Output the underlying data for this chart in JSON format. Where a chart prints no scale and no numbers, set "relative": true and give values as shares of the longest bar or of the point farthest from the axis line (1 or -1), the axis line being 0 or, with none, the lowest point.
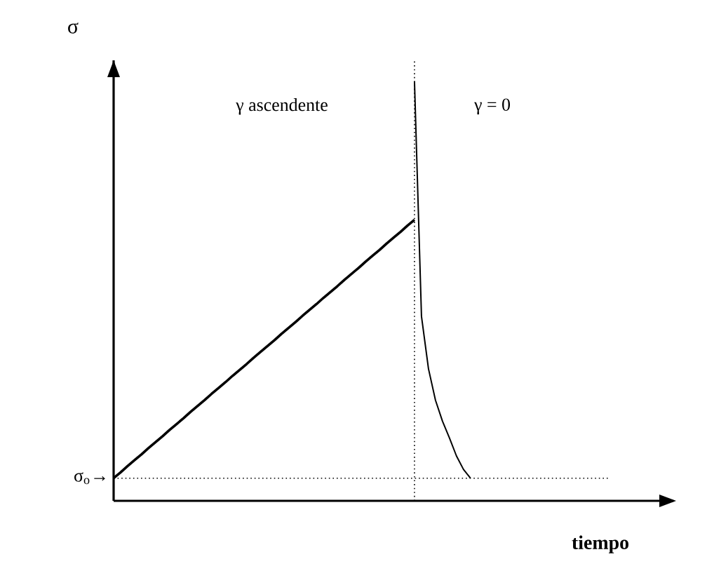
{
  "chart_data": {
    "type": "line",
    "relative": true,
    "xlabel": "tiempo",
    "ylabel": "σ",
    "categories": [
      null,
      null,
      null,
      null,
      null,
      null,
      null,
      null,
      null,
      null,
      null,
      null,
      null,
      null,
      null,
      null,
      null,
      null,
      null,
      null,
      null,
      null,
      null,
      null,
      null,
      null,
      null,
      null,
      null,
      null,
      null,
      null,
      null,
      null,
      null,
      null,
      null,
      null,
      null,
      null,
      null,
      null,
      null,
      null,
      null,
      null,
      null,
      null,
      null,
      null,
      null,
      null,
      null,
      null,
      null,
      null,
      null,
      null,
      null,
      null,
      null,
      null,
      null,
      null,
      null,
      null,
      null,
      null,
      null,
      null,
      null,
      null,
      null,
      null,
      null,
      null,
      null,
      null,
      null,
      null,
      null
    ],
    "series": [
      {
        "color": "#000000",
        "values": [
          0.054,
          0.068,
          0.083,
          0.097,
          0.111,
          0.126,
          0.14,
          0.154,
          0.169,
          0.183,
          0.197,
          0.212,
          0.226,
          0.24,
          0.255,
          0.269,
          0.283,
          0.298,
          0.312,
          0.326,
          0.341,
          0.355,
          0.369,
          0.383,
          0.398,
          0.412,
          0.426,
          0.441,
          0.455,
          0.469,
          0.484,
          0.498,
          0.512,
          0.527,
          0.541,
          0.555,
          0.57,
          0.584,
          0.598,
          0.613,
          0.627,
          0.641,
          0.656,
          0.67,
          null,
          null,
          null,
          null,
          null,
          null,
          null,
          null,
          null,
          null,
          null,
          null,
          null,
          null,
          null,
          null,
          null,
          null,
          null,
          null,
          null,
          null,
          null,
          null,
          null,
          null,
          null,
          null,
          null,
          null,
          null,
          null,
          null,
          null,
          null,
          null,
          null
        ]
      },
      {
        "color": "#000000",
        "values": [
          null,
          null,
          null,
          null,
          null,
          null,
          null,
          null,
          null,
          null,
          null,
          null,
          null,
          null,
          null,
          null,
          null,
          null,
          null,
          null,
          null,
          null,
          null,
          null,
          null,
          null,
          null,
          null,
          null,
          null,
          null,
          null,
          null,
          null,
          null,
          null,
          null,
          null,
          null,
          null,
          null,
          null,
          null,
          1.0,
          0.44,
          0.315,
          0.24,
          0.19,
          0.15,
          0.107,
          0.075,
          0.054,
          null,
          null,
          null,
          null,
          null,
          null,
          null,
          null,
          null,
          null,
          null,
          null,
          null,
          null,
          null,
          null,
          null,
          null,
          null,
          null,
          null,
          null,
          null,
          null,
          null,
          null,
          null,
          null,
          null
        ]
      }
    ],
    "ref_lines": [
      {
        "axis": "y",
        "value": 0.054,
        "label": "σ$_{o}$→",
        "line_style": "dotted",
        "color": "#000000"
      }
    ],
    "annotations": [
      "γ  ascendente",
      "γ = 0"
    ],
    "marker": "none",
    "line_style": "solid"
  }
}
